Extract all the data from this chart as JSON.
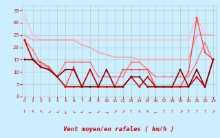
{
  "bg_color": "#cceeff",
  "grid_color": "#aacccc",
  "xlabel": "Vent moyen/en rafales ( km/h )",
  "xlabel_color": "#cc0000",
  "tick_color": "#cc0000",
  "x_ticks": [
    0,
    1,
    2,
    3,
    4,
    5,
    6,
    7,
    8,
    9,
    10,
    11,
    12,
    13,
    14,
    15,
    16,
    17,
    18,
    19,
    20,
    21,
    22,
    23
  ],
  "ylim": [
    0,
    37
  ],
  "xlim": [
    -0.3,
    23.3
  ],
  "y_ticks": [
    0,
    5,
    10,
    15,
    20,
    25,
    30,
    35
  ],
  "lines": [
    {
      "comment": "lightest pink, no markers, starts 33 drops to ~23 goes flat then rises at end to ~25",
      "color": "#ffbbbb",
      "lw": 1.0,
      "marker": null,
      "x": [
        0,
        1,
        2,
        3,
        4,
        5,
        6,
        7,
        8,
        9,
        10,
        11,
        12,
        13,
        14,
        15,
        16,
        17,
        18,
        19,
        20,
        21,
        22,
        23
      ],
      "y": [
        33,
        25,
        23,
        23,
        23,
        23,
        23,
        23,
        23,
        23,
        23,
        23,
        23,
        23,
        23,
        23,
        23,
        23,
        23,
        23,
        23,
        33,
        25,
        25
      ]
    },
    {
      "comment": "light pink, no markers, starts 25 drops gently to ~15 rises at end to 25",
      "color": "#ff9999",
      "lw": 1.0,
      "marker": null,
      "x": [
        0,
        1,
        2,
        3,
        4,
        5,
        6,
        7,
        8,
        9,
        10,
        11,
        12,
        13,
        14,
        15,
        16,
        17,
        18,
        19,
        20,
        21,
        22,
        23
      ],
      "y": [
        25,
        23,
        23,
        23,
        23,
        23,
        23,
        21,
        20,
        18,
        17,
        16,
        16,
        16,
        15,
        15,
        15,
        15,
        15,
        15,
        15,
        25,
        25,
        25
      ]
    },
    {
      "comment": "medium pink with markers, starts ~23 drops to ~5 range then rises to ~18 at end",
      "color": "#ff7777",
      "lw": 1.0,
      "marker": "s",
      "ms": 2.0,
      "x": [
        0,
        1,
        2,
        3,
        4,
        5,
        6,
        7,
        8,
        9,
        10,
        11,
        12,
        13,
        14,
        15,
        16,
        17,
        18,
        19,
        20,
        21,
        22,
        23
      ],
      "y": [
        23,
        19,
        13,
        12,
        8,
        14,
        14,
        14,
        14,
        8,
        8,
        8,
        8,
        14,
        14,
        11,
        8,
        8,
        8,
        8,
        8,
        14,
        22,
        14
      ]
    },
    {
      "comment": "medium red with markers, starts 23, drops, zigzag around 4-12, spikes to 32 at x=21",
      "color": "#ff4444",
      "lw": 1.0,
      "marker": "s",
      "ms": 2.0,
      "x": [
        0,
        1,
        2,
        3,
        4,
        5,
        6,
        7,
        8,
        9,
        10,
        11,
        12,
        13,
        14,
        15,
        16,
        17,
        18,
        19,
        20,
        21,
        22,
        23
      ],
      "y": [
        23,
        15,
        14,
        12,
        8,
        4,
        12,
        4,
        11,
        4,
        4,
        4,
        11,
        11,
        11,
        11,
        4,
        4,
        4,
        4,
        10,
        32,
        18,
        15
      ]
    },
    {
      "comment": "dark red with markers, starts 23, drops to ~4 stays low",
      "color": "#cc0000",
      "lw": 1.2,
      "marker": "s",
      "ms": 2.0,
      "x": [
        0,
        1,
        2,
        3,
        4,
        5,
        6,
        7,
        8,
        9,
        10,
        11,
        12,
        13,
        14,
        15,
        16,
        17,
        18,
        19,
        20,
        21,
        22,
        23
      ],
      "y": [
        23,
        15,
        12,
        11,
        8,
        4,
        4,
        4,
        11,
        4,
        4,
        4,
        4,
        8,
        4,
        8,
        4,
        4,
        4,
        4,
        4,
        8,
        4,
        15
      ]
    },
    {
      "comment": "darkest red/maroon with markers, starts 15, zigzag stays around 4-12",
      "color": "#880000",
      "lw": 1.2,
      "marker": "s",
      "ms": 2.0,
      "x": [
        0,
        1,
        2,
        3,
        4,
        5,
        6,
        7,
        8,
        9,
        10,
        11,
        12,
        13,
        14,
        15,
        16,
        17,
        18,
        19,
        20,
        21,
        22,
        23
      ],
      "y": [
        15,
        15,
        12,
        11,
        8,
        11,
        11,
        4,
        4,
        4,
        11,
        4,
        4,
        8,
        8,
        4,
        4,
        4,
        4,
        11,
        4,
        11,
        4,
        15
      ]
    }
  ],
  "wind_syms": [
    "↑",
    "↖",
    "↖",
    "↙",
    "↙",
    "↓",
    "↘",
    "↙",
    "←",
    "↙",
    "→",
    "↗",
    "↗",
    "↑",
    "↖",
    "↖",
    "←",
    "↑",
    "↑",
    "↗",
    "↑",
    "↑",
    "↑",
    "↗"
  ]
}
